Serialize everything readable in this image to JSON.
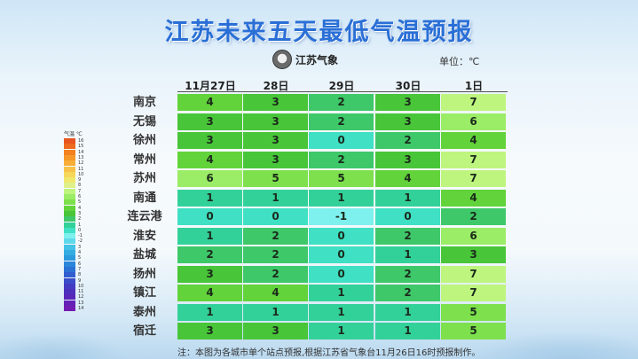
{
  "title": "江苏未来五天最低气温预报",
  "logo_text": "江苏气象",
  "unit": "单位：℃",
  "columns": [
    "11月27日",
    "28日",
    "29日",
    "30日",
    "1日"
  ],
  "rows": [
    {
      "city": "南京",
      "values": [
        4,
        3,
        2,
        3,
        7
      ]
    },
    {
      "city": "无锡",
      "values": [
        3,
        3,
        2,
        3,
        6
      ]
    },
    {
      "city": "徐州",
      "values": [
        3,
        3,
        0,
        2,
        4
      ]
    },
    {
      "city": "常州",
      "values": [
        4,
        3,
        2,
        3,
        7
      ]
    },
    {
      "city": "苏州",
      "values": [
        6,
        5,
        5,
        4,
        7
      ]
    },
    {
      "city": "南通",
      "values": [
        1,
        1,
        1,
        1,
        4
      ]
    },
    {
      "city": "连云港",
      "values": [
        0,
        0,
        -1,
        0,
        2
      ]
    },
    {
      "city": "淮安",
      "values": [
        1,
        2,
        0,
        2,
        6
      ]
    },
    {
      "city": "盐城",
      "values": [
        2,
        2,
        0,
        1,
        3
      ]
    },
    {
      "city": "扬州",
      "values": [
        3,
        2,
        0,
        2,
        7
      ]
    },
    {
      "city": "镇江",
      "values": [
        4,
        4,
        1,
        2,
        7
      ]
    },
    {
      "city": "泰州",
      "values": [
        1,
        1,
        1,
        1,
        5
      ]
    },
    {
      "city": "宿迁",
      "values": [
        3,
        3,
        1,
        1,
        5
      ]
    }
  ],
  "legend": {
    "header": "气温  ℃",
    "entries": [
      {
        "label": "16",
        "color": "#e8541f"
      },
      {
        "label": "15",
        "color": "#ee6a1e"
      },
      {
        "label": "14",
        "color": "#f3811f"
      },
      {
        "label": "13",
        "color": "#f6982a"
      },
      {
        "label": "12",
        "color": "#f8ae38"
      },
      {
        "label": "11",
        "color": "#f8c24a"
      },
      {
        "label": "10",
        "color": "#f6d75b"
      },
      {
        "label": "9",
        "color": "#efe86c"
      },
      {
        "label": "8",
        "color": "#dff08a"
      },
      {
        "label": "7",
        "color": "#bef57e"
      },
      {
        "label": "6",
        "color": "#9bec66"
      },
      {
        "label": "5",
        "color": "#7de04c"
      },
      {
        "label": "4",
        "color": "#62d33a"
      },
      {
        "label": "3",
        "color": "#48c538"
      },
      {
        "label": "2",
        "color": "#3ec86a"
      },
      {
        "label": "1",
        "color": "#33d19a"
      },
      {
        "label": "0",
        "color": "#3fe0c4"
      },
      {
        "label": "-1",
        "color": "#7ef0ee"
      },
      {
        "label": "-2",
        "color": "#5fd9ea"
      },
      {
        "label": "3",
        "color": "#44c2e6"
      },
      {
        "label": "4",
        "color": "#34aee2"
      },
      {
        "label": "5",
        "color": "#2e9ade"
      },
      {
        "label": "6",
        "color": "#2b86da"
      },
      {
        "label": "7",
        "color": "#2c72d4"
      },
      {
        "label": "8",
        "color": "#325ecf"
      },
      {
        "label": "9",
        "color": "#3a4cc9"
      },
      {
        "label": "10",
        "color": "#433cc3"
      },
      {
        "label": "11",
        "color": "#4d2fbd"
      },
      {
        "label": "12",
        "color": "#5826b8"
      },
      {
        "label": "13",
        "color": "#6520b6"
      },
      {
        "label": "14",
        "color": "#721cb4"
      }
    ]
  },
  "cell_colors": {
    "7": "#bef57e",
    "6": "#9bec66",
    "5": "#7de04c",
    "4": "#62d33a",
    "3": "#48c538",
    "2": "#3ec86a",
    "1": "#33d19a",
    "0": "#3fe0c4",
    "-1": "#7ef0ee"
  },
  "note": "注：本图为各城市单个站点预报,根据江苏省气象台11月26日16时预报制作。"
}
